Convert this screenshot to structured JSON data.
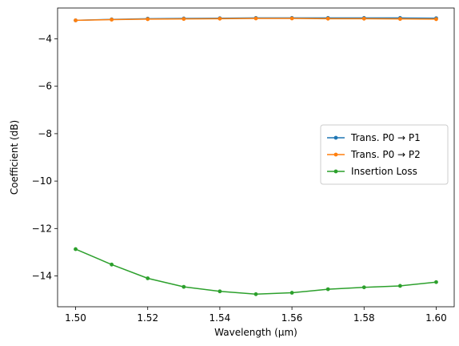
{
  "chart_data": {
    "type": "line",
    "title": "",
    "xlabel": "Wavelength (µm)",
    "ylabel": "Coefficient (dB)",
    "xlim": [
      1.495,
      1.605
    ],
    "ylim": [
      -15.3,
      -2.7
    ],
    "xticks": [
      1.5,
      1.52,
      1.54,
      1.56,
      1.58,
      1.6
    ],
    "xtick_labels": [
      "1.50",
      "1.52",
      "1.54",
      "1.56",
      "1.58",
      "1.60"
    ],
    "yticks": [
      -14,
      -12,
      -10,
      -8,
      -6,
      -4
    ],
    "ytick_labels": [
      "−14",
      "−12",
      "−10",
      "−8",
      "−6",
      "−4"
    ],
    "grid": false,
    "legend_position": "center-right",
    "x": [
      1.5,
      1.51,
      1.52,
      1.53,
      1.54,
      1.55,
      1.56,
      1.57,
      1.58,
      1.59,
      1.6
    ],
    "series": [
      {
        "name": "Trans. P0 → P1",
        "color": "#1f77b4",
        "values": [
          -3.22,
          -3.18,
          -3.15,
          -3.14,
          -3.13,
          -3.12,
          -3.12,
          -3.12,
          -3.12,
          -3.12,
          -3.13
        ]
      },
      {
        "name": "Trans. P0 → P2",
        "color": "#ff7f0e",
        "values": [
          -3.22,
          -3.19,
          -3.17,
          -3.16,
          -3.15,
          -3.14,
          -3.14,
          -3.15,
          -3.15,
          -3.16,
          -3.17
        ]
      },
      {
        "name": "Insertion Loss",
        "color": "#2ca02c",
        "values": [
          -12.87,
          -13.52,
          -14.1,
          -14.46,
          -14.65,
          -14.77,
          -14.71,
          -14.56,
          -14.48,
          -14.42,
          -14.26
        ]
      }
    ]
  }
}
